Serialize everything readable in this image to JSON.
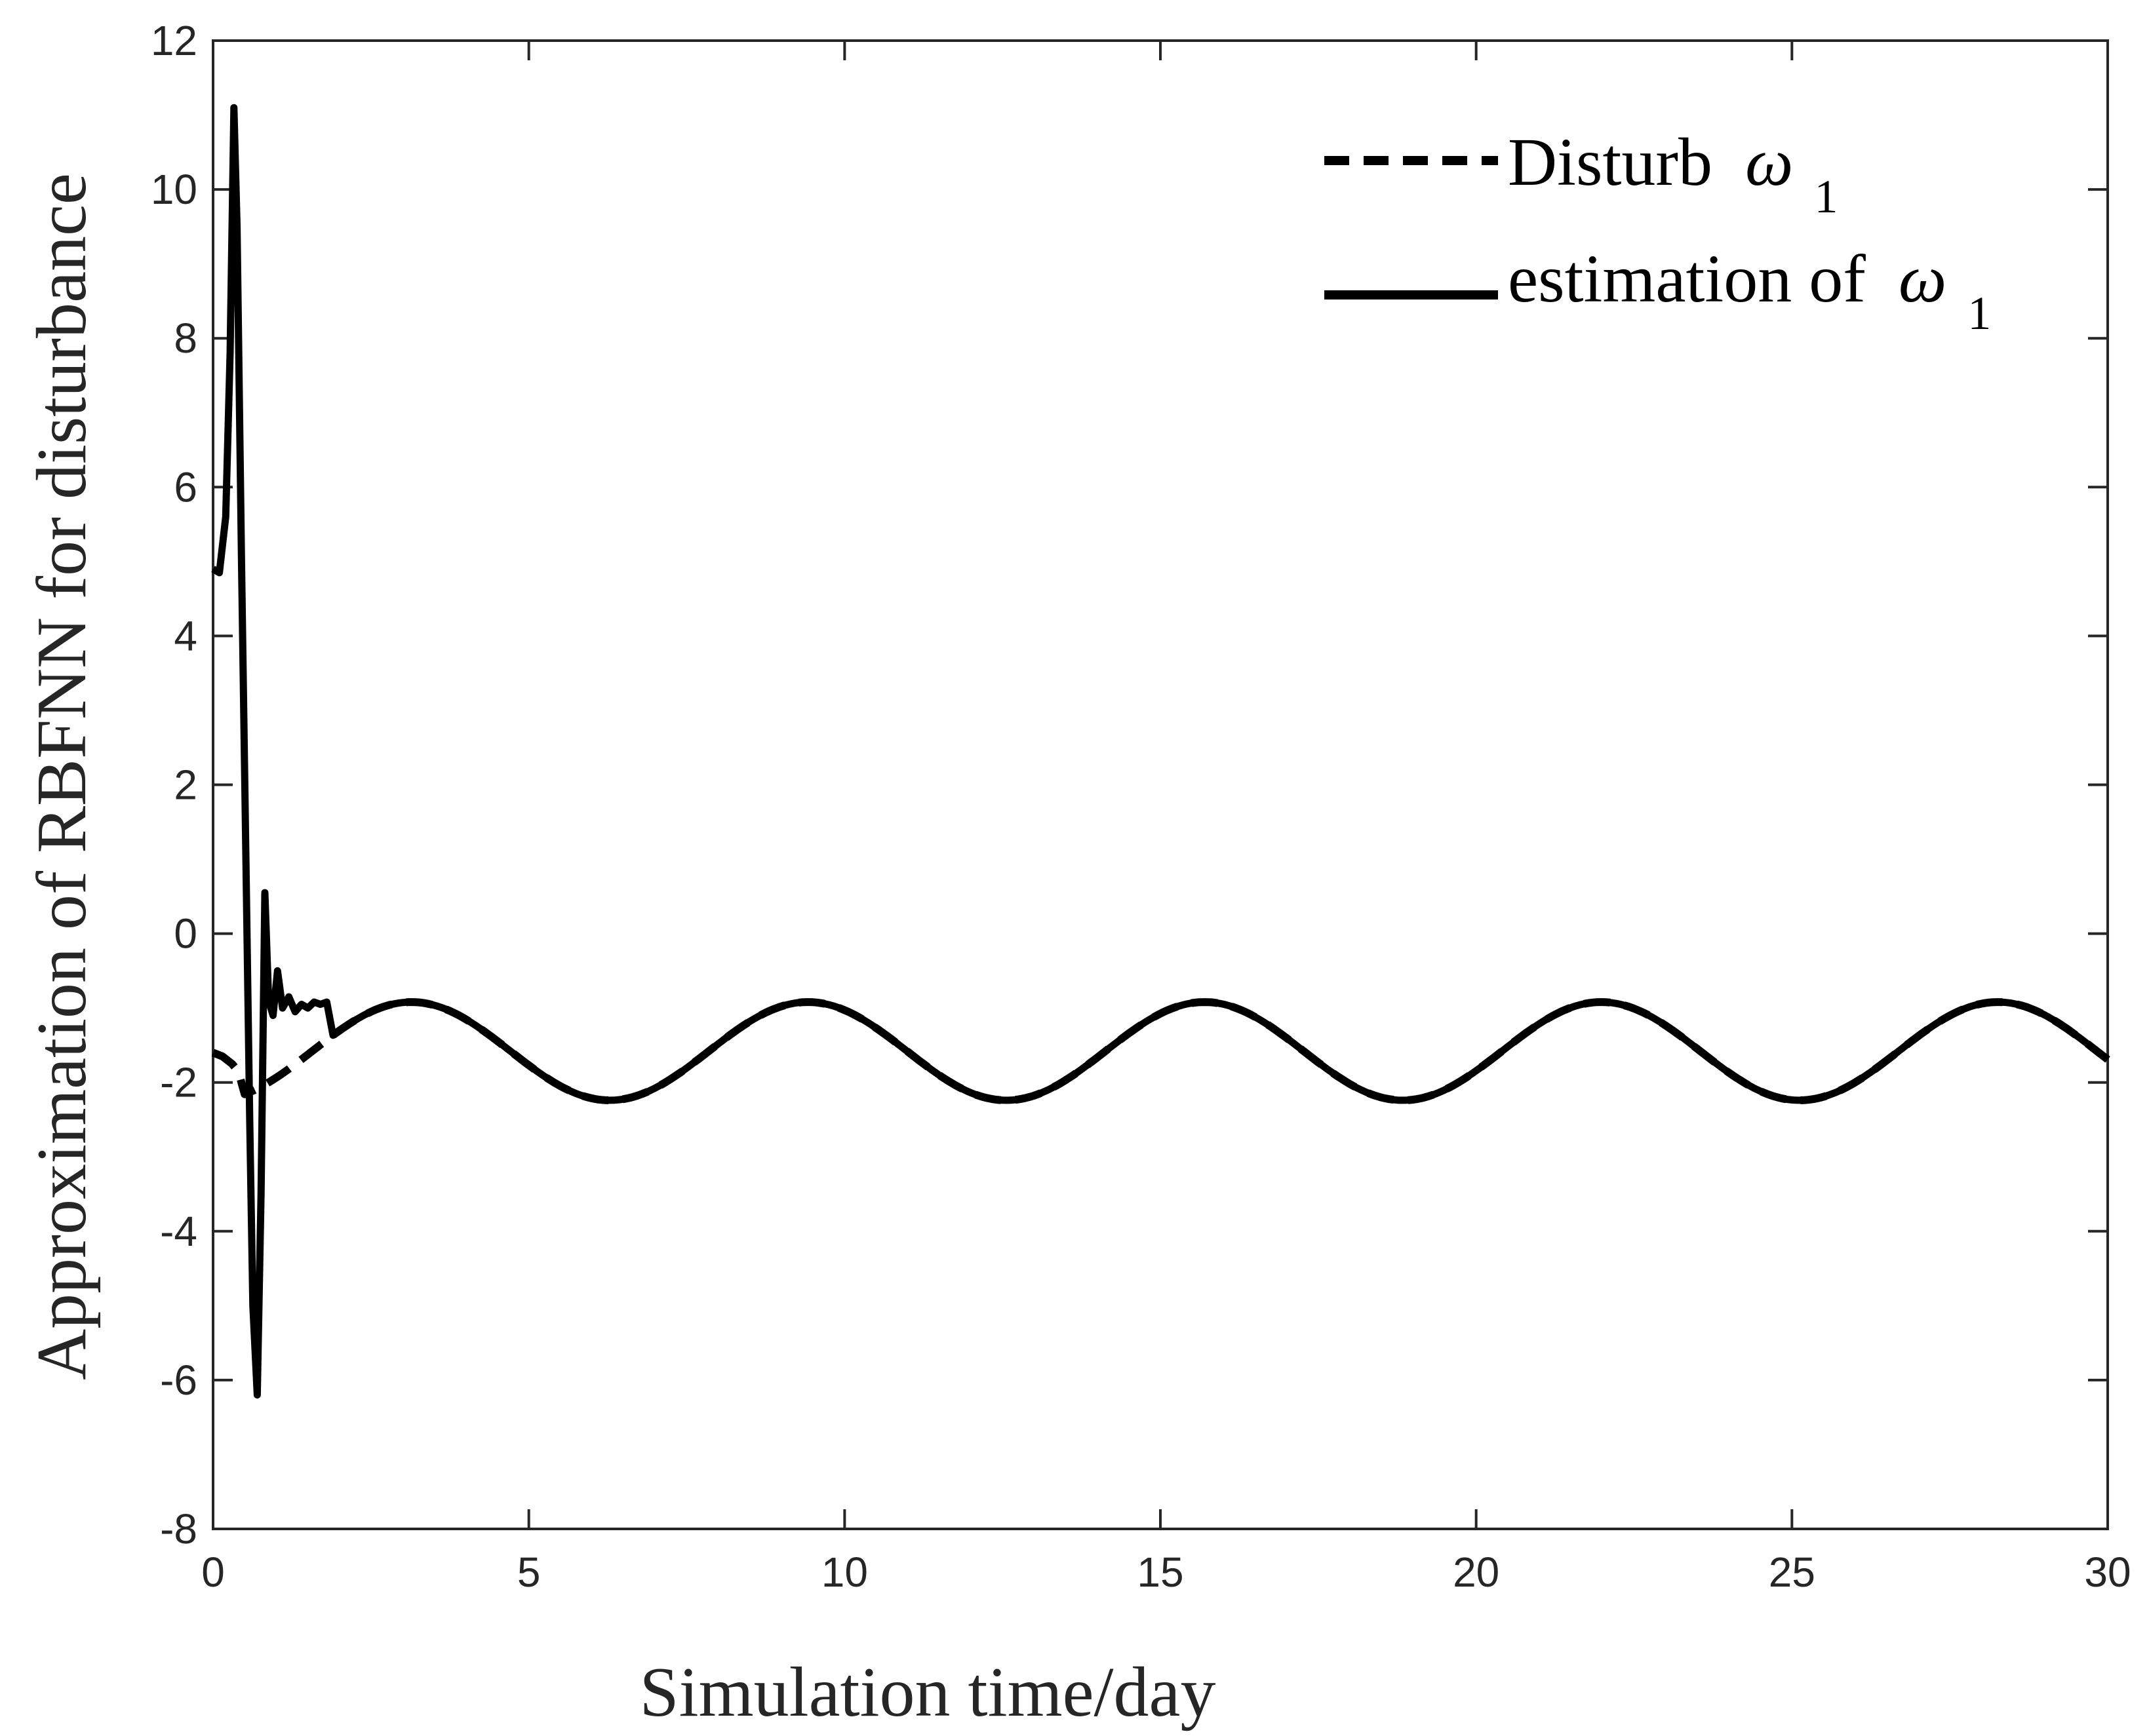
{
  "chart_data": {
    "type": "line",
    "title": "",
    "xlabel": "Simulation time/day",
    "ylabel": "Approximation of RBFNN for disturbance",
    "xlim": [
      0,
      30
    ],
    "ylim": [
      -8,
      12
    ],
    "xticks": [
      0,
      5,
      10,
      15,
      20,
      25,
      30
    ],
    "yticks": [
      -8,
      -6,
      -4,
      -2,
      0,
      2,
      4,
      6,
      8,
      10,
      12
    ],
    "xtick_labels": [
      "0",
      "5",
      "10",
      "15",
      "20",
      "25",
      "30"
    ],
    "ytick_labels": [
      "-8",
      "-6",
      "-4",
      "-2",
      "0",
      "2",
      "4",
      "6",
      "8",
      "10",
      "12"
    ],
    "grid": false,
    "legend_position": "top-right",
    "disturbance_model": {
      "mean": -1.58,
      "amplitude": 0.66,
      "period_days": 6.28,
      "phase": -1.57
    },
    "series": [
      {
        "name": "Disturb",
        "legend_symbol": "ω",
        "legend_subscript": "1",
        "style": "dashed",
        "color": "#000000",
        "early_points": [
          [
            0,
            -1.6
          ],
          [
            0.15,
            -1.65
          ],
          [
            0.3,
            -1.75
          ],
          [
            0.4,
            -1.85
          ]
        ],
        "join_at": 0.5
      },
      {
        "name": "estimation of",
        "legend_symbol": "ω",
        "legend_subscript": "1",
        "style": "solid",
        "color": "#000000",
        "early_points": [
          [
            0,
            4.9
          ],
          [
            0.1,
            4.85
          ],
          [
            0.2,
            5.6
          ],
          [
            0.27,
            7.8
          ],
          [
            0.33,
            11.1
          ],
          [
            0.38,
            9.5
          ],
          [
            0.45,
            5.0
          ],
          [
            0.52,
            1.0
          ],
          [
            0.58,
            -2.5
          ],
          [
            0.63,
            -5.0
          ],
          [
            0.7,
            -6.2
          ],
          [
            0.76,
            -3.5
          ],
          [
            0.82,
            0.55
          ],
          [
            0.88,
            -0.9
          ],
          [
            0.95,
            -1.1
          ],
          [
            1.02,
            -0.5
          ],
          [
            1.1,
            -1.0
          ],
          [
            1.2,
            -0.85
          ],
          [
            1.3,
            -1.05
          ],
          [
            1.4,
            -0.95
          ],
          [
            1.5,
            -1.0
          ],
          [
            1.6,
            -0.92
          ],
          [
            1.7,
            -0.95
          ],
          [
            1.8,
            -0.92
          ]
        ],
        "join_at": 1.9
      }
    ]
  }
}
